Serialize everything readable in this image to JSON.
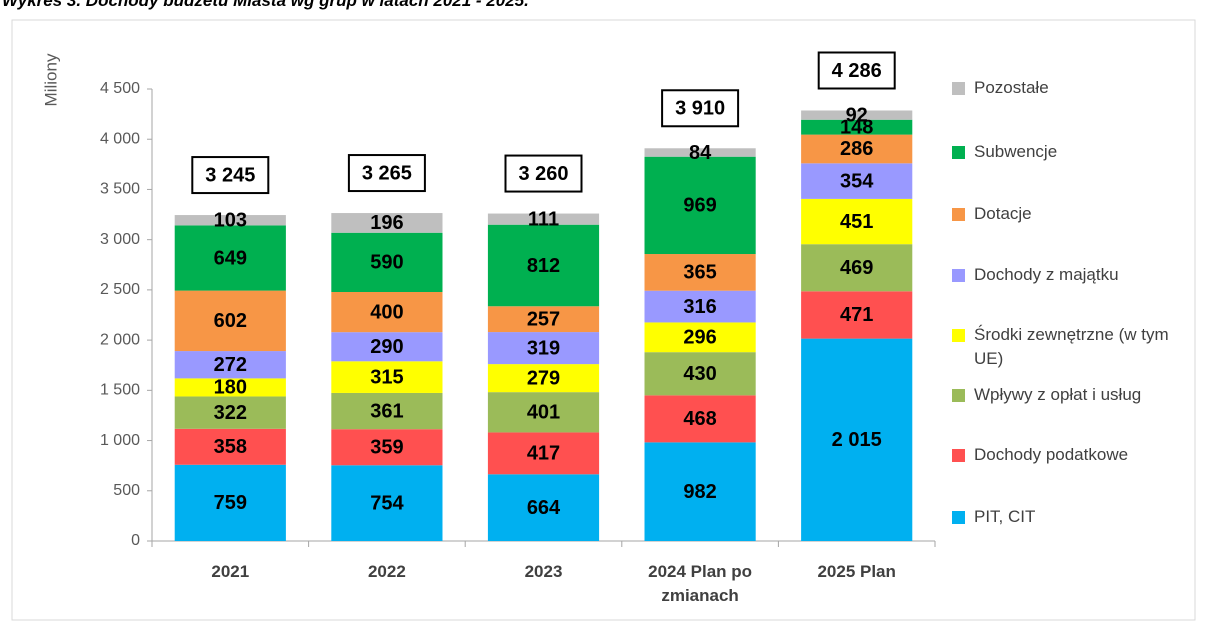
{
  "chart_data": {
    "type": "bar",
    "stacked": true,
    "title": "Wykres 3. Dochody budżetu Miasta wg grup w latach 2021 - 2025.",
    "y_axis_label": "Miliony",
    "categories": [
      "2021",
      "2022",
      "2023",
      "2024 Plan po zmianach",
      "2025 Plan"
    ],
    "series": [
      {
        "name": "PIT, CIT",
        "color": "#00b0f0",
        "values": [
          759,
          754,
          664,
          982,
          2015
        ],
        "value_labels": [
          "759",
          "754",
          "664",
          "982",
          "2 015"
        ]
      },
      {
        "name": "Dochody podatkowe",
        "color": "#ff5050",
        "values": [
          358,
          359,
          417,
          468,
          471
        ]
      },
      {
        "name": "Wpływy z opłat i usług",
        "color": "#9bbb59",
        "values": [
          322,
          361,
          401,
          430,
          469
        ]
      },
      {
        "name": "Środki zewnętrzne (w tym UE)",
        "color": "#ffff00",
        "values": [
          180,
          315,
          279,
          296,
          451
        ]
      },
      {
        "name": "Dochody z majątku",
        "color": "#9999ff",
        "values": [
          272,
          290,
          319,
          316,
          354
        ]
      },
      {
        "name": "Dotacje",
        "color": "#f79646",
        "values": [
          602,
          400,
          257,
          365,
          286
        ]
      },
      {
        "name": "Subwencje",
        "color": "#00b050",
        "values": [
          649,
          590,
          812,
          969,
          148
        ]
      },
      {
        "name": "Pozostałe",
        "color": "#bfbfbf",
        "values": [
          103,
          196,
          111,
          84,
          92
        ]
      }
    ],
    "totals": [
      3245,
      3265,
      3260,
      3910,
      4286
    ],
    "total_labels": [
      "3 245",
      "3 265",
      "3 260",
      "3 910",
      "4 286"
    ],
    "ylim": [
      0,
      4500
    ],
    "yticks": [
      0,
      500,
      {
        "value": 1000,
        "label": "1 000"
      },
      {
        "value": 1500,
        "label": "1 500"
      },
      {
        "value": 2000,
        "label": "2 000"
      },
      {
        "value": 2500,
        "label": "2 500"
      },
      {
        "value": 3000,
        "label": "3 000"
      },
      {
        "value": 3500,
        "label": "3 500"
      },
      {
        "value": 4000,
        "label": "4 000"
      },
      {
        "value": 4500,
        "label": "4 500"
      }
    ],
    "legend": "right"
  }
}
